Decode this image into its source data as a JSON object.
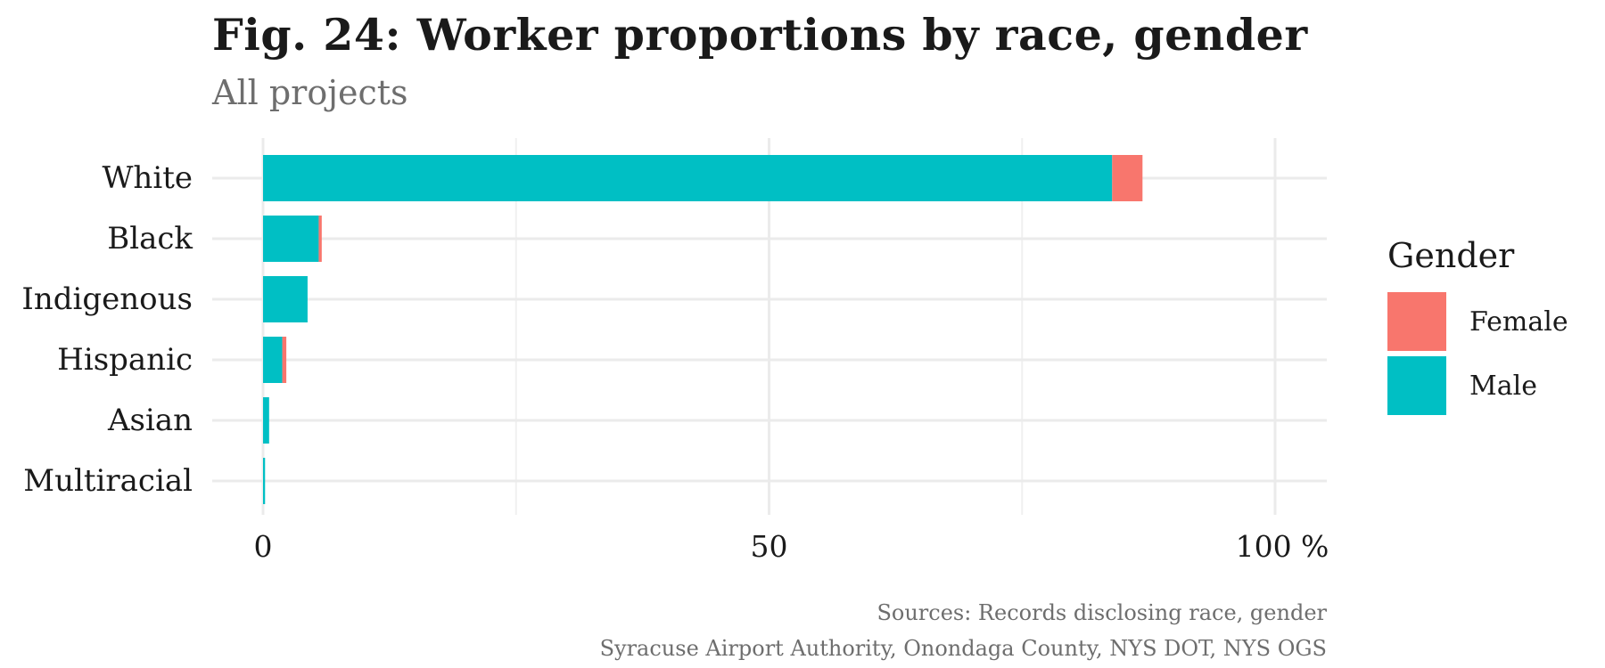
{
  "header": {
    "title": "Fig. 24: Worker proportions by race, gender",
    "subtitle": "All projects"
  },
  "caption": {
    "line1": "Sources: Records disclosing race, gender",
    "line2": "Syracuse Airport Authority, Onondaga County, NYS DOT, NYS OGS"
  },
  "legend": {
    "title": "Gender",
    "items": [
      {
        "label": "Female",
        "color": "#F8766D"
      },
      {
        "label": "Male",
        "color": "#00BFC4"
      }
    ]
  },
  "chart_data": {
    "type": "bar",
    "orientation": "horizontal",
    "stacked": true,
    "title": "Fig. 24: Worker proportions by race, gender",
    "subtitle": "All projects",
    "xlabel": "",
    "ylabel": "",
    "xlim": [
      0,
      105
    ],
    "x_ticks": [
      {
        "value": 0,
        "label": "0"
      },
      {
        "value": 50,
        "label": "50"
      },
      {
        "value": 100,
        "label": "100 %"
      }
    ],
    "grid": true,
    "legend_position": "right",
    "categories": [
      "White",
      "Black",
      "Indigenous",
      "Hispanic",
      "Asian",
      "Multiracial"
    ],
    "series": [
      {
        "name": "Male",
        "color": "#00BFC4",
        "values": [
          83.9,
          5.5,
          4.4,
          1.9,
          0.6,
          0.2
        ]
      },
      {
        "name": "Female",
        "color": "#F8766D",
        "values": [
          3.0,
          0.3,
          0.0,
          0.4,
          0.0,
          0.0
        ]
      }
    ]
  }
}
